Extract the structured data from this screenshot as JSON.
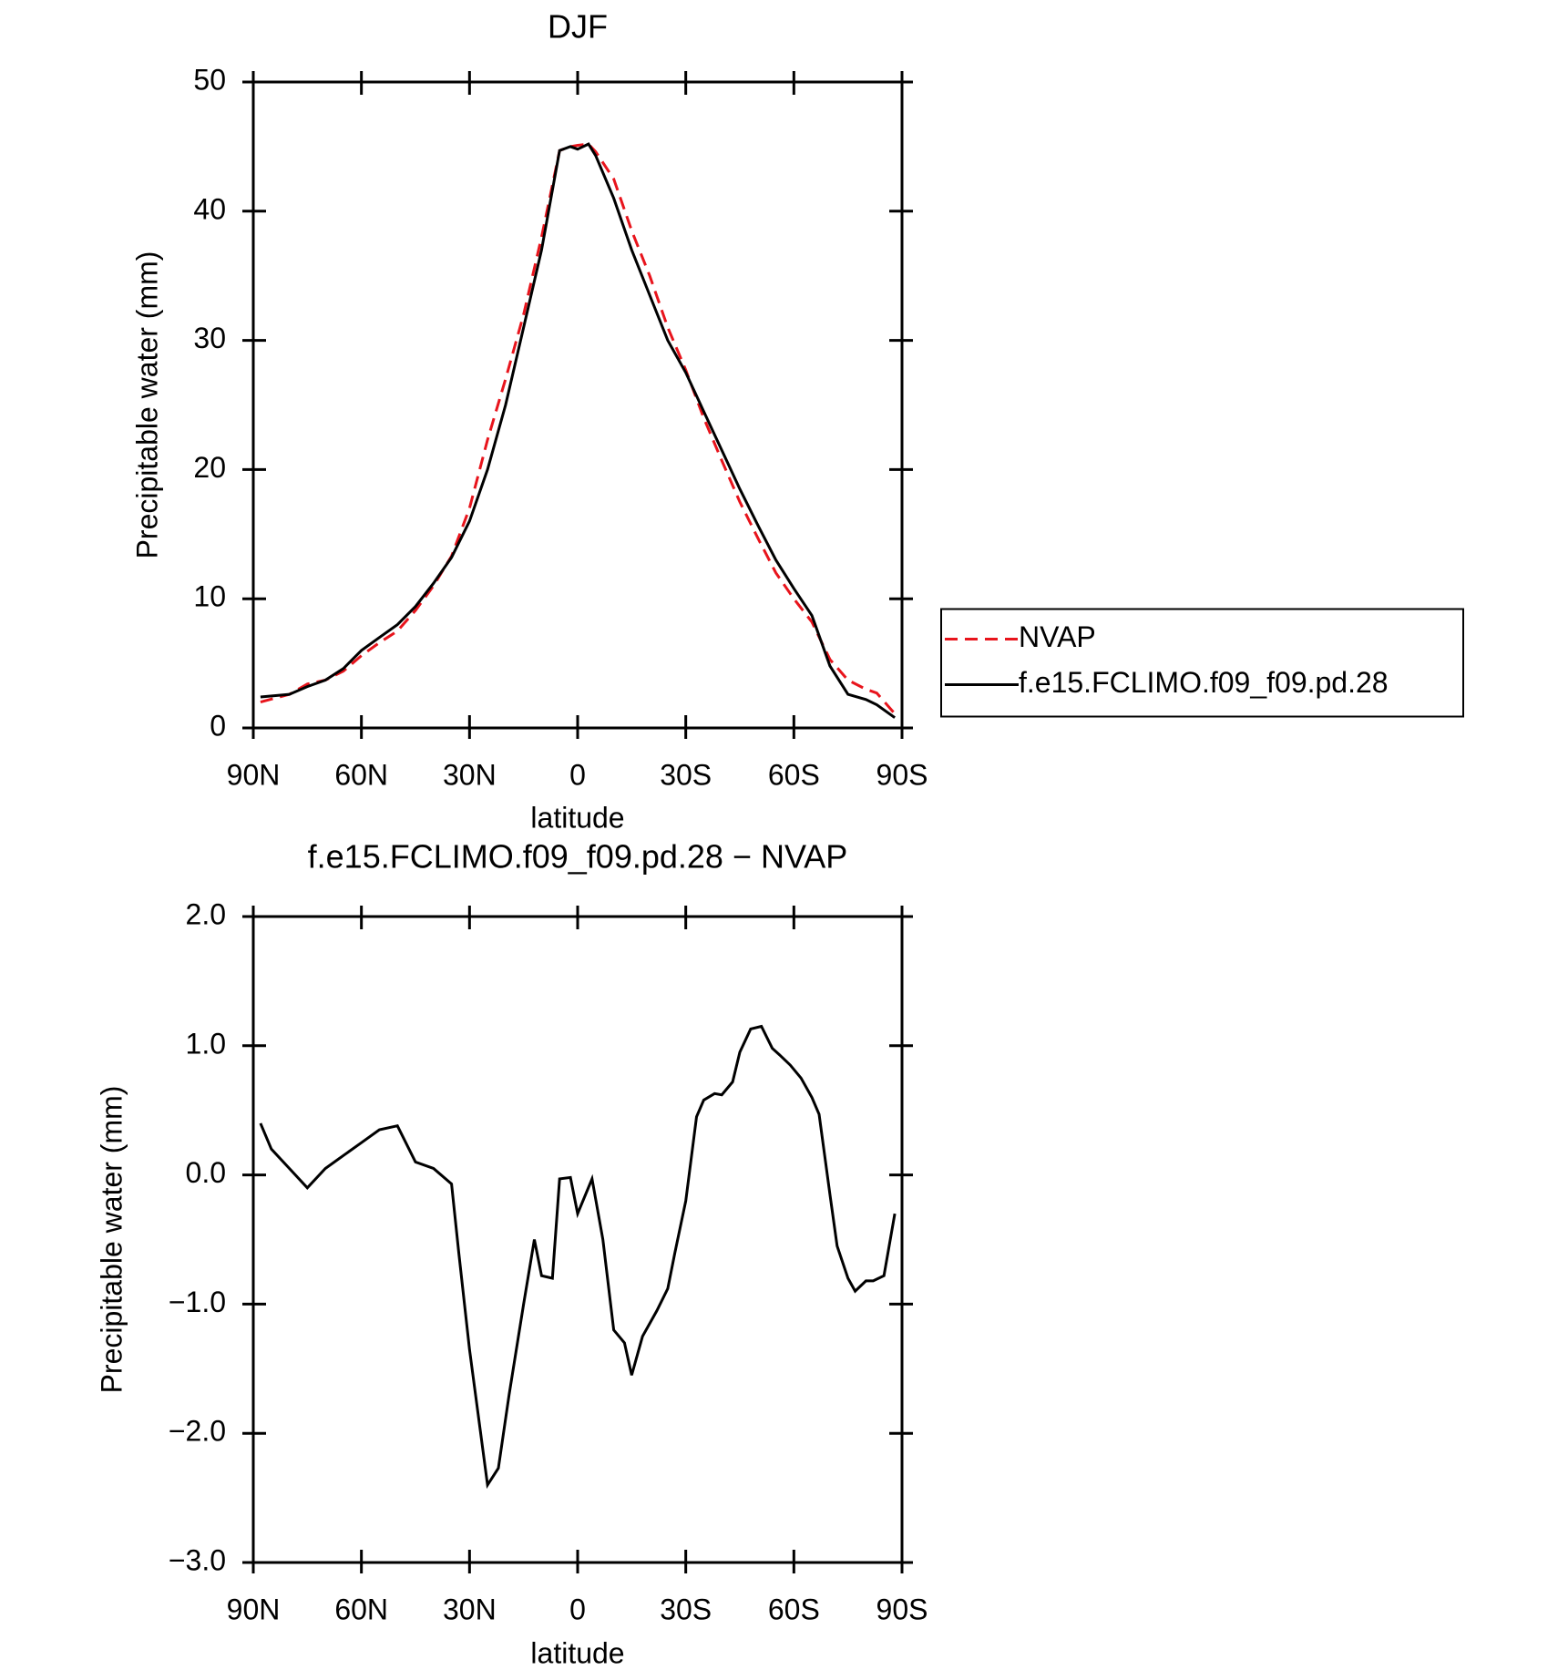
{
  "chart_data": [
    {
      "type": "line",
      "title": "DJF",
      "xlabel": "latitude",
      "ylabel": "Precipitable water (mm)",
      "x": [
        88,
        80,
        75,
        70,
        65,
        60,
        55,
        50,
        45,
        40,
        35,
        30,
        25,
        20,
        15,
        10,
        5,
        2,
        0,
        -3,
        -5,
        -10,
        -15,
        -20,
        -25,
        -30,
        -35,
        -40,
        -45,
        -50,
        -55,
        -60,
        -65,
        -70,
        -75,
        -80,
        -83,
        -88
      ],
      "series": [
        {
          "name": "NVAP",
          "color": "#e8141c",
          "style": "dashed",
          "values": [
            2.0,
            2.6,
            3.4,
            3.7,
            4.4,
            5.6,
            6.6,
            7.5,
            9.1,
            11.0,
            13.3,
            17.0,
            22.3,
            27.0,
            32.0,
            38.0,
            44.7,
            45.0,
            45.1,
            45.2,
            44.6,
            42.5,
            38.5,
            35.0,
            31.0,
            27.7,
            24.0,
            20.7,
            17.5,
            14.7,
            12.0,
            10.0,
            8.2,
            5.3,
            3.7,
            3.0,
            2.7,
            1.1
          ]
        },
        {
          "name": "f.e15.FCLIMO.f09_f09.pd.28",
          "color": "#000000",
          "style": "solid",
          "values": [
            2.4,
            2.6,
            3.2,
            3.7,
            4.6,
            6.0,
            7.0,
            8.0,
            9.4,
            11.2,
            13.2,
            16.0,
            20.0,
            25.0,
            31.0,
            37.0,
            44.7,
            45.0,
            44.8,
            45.2,
            44.3,
            41.0,
            37.0,
            33.5,
            30.0,
            27.5,
            24.5,
            21.5,
            18.5,
            15.7,
            13.0,
            10.8,
            8.7,
            4.8,
            2.6,
            2.2,
            1.8,
            0.8
          ]
        }
      ],
      "xlim": [
        90,
        -90
      ],
      "xticks": [
        {
          "value": 90,
          "label": "90N"
        },
        {
          "value": 60,
          "label": "60N"
        },
        {
          "value": 30,
          "label": "30N"
        },
        0,
        {
          "value": -30,
          "label": "30S"
        },
        {
          "value": -60,
          "label": "60S"
        },
        {
          "value": -90,
          "label": "90S"
        }
      ],
      "ylim": [
        0,
        50
      ],
      "yticks": [
        0,
        10,
        20,
        30,
        40,
        50
      ],
      "legend": "right"
    },
    {
      "type": "line",
      "title": "f.e15.FCLIMO.f09_f09.pd.28 − NVAP",
      "xlabel": "latitude",
      "ylabel": "Precipitable water (mm)",
      "x": [
        88,
        85,
        80,
        75,
        70,
        65,
        60,
        55,
        50,
        45,
        40,
        35,
        33,
        30,
        25,
        22,
        19,
        15,
        12,
        10,
        7,
        5,
        2,
        0,
        -4,
        -7,
        -10,
        -13,
        -15,
        -18,
        -22,
        -25,
        -27,
        -30,
        -33,
        -35,
        -38,
        -40,
        -43,
        -45,
        -48,
        -51,
        -54,
        -56,
        -59,
        -62,
        -65,
        -67,
        -70,
        -72,
        -75,
        -77,
        -80,
        -82,
        -85,
        -88
      ],
      "series": [
        {
          "color": "#000000",
          "style": "solid",
          "values": [
            0.4,
            0.2,
            0.05,
            -0.1,
            0.05,
            0.15,
            0.25,
            0.35,
            0.38,
            0.1,
            0.05,
            -0.07,
            -0.6,
            -1.35,
            -2.4,
            -2.27,
            -1.7,
            -1.0,
            -0.5,
            -0.78,
            -0.8,
            -0.03,
            -0.02,
            -0.3,
            -0.03,
            -0.5,
            -1.2,
            -1.3,
            -1.55,
            -1.25,
            -1.05,
            -0.88,
            -0.6,
            -0.2,
            0.45,
            0.58,
            0.63,
            0.62,
            0.72,
            0.95,
            1.13,
            1.15,
            0.98,
            0.93,
            0.85,
            0.75,
            0.6,
            0.47,
            -0.15,
            -0.55,
            -0.8,
            -0.9,
            -0.82,
            -0.82,
            -0.78,
            -0.3
          ]
        }
      ],
      "xlim": [
        90,
        -90
      ],
      "xticks": [
        {
          "value": 90,
          "label": "90N"
        },
        {
          "value": 60,
          "label": "60N"
        },
        {
          "value": 30,
          "label": "30N"
        },
        0,
        {
          "value": -30,
          "label": "30S"
        },
        {
          "value": -60,
          "label": "60S"
        },
        {
          "value": -90,
          "label": "90S"
        }
      ],
      "ylim": [
        -3,
        2
      ],
      "yticks": [
        {
          "value": -3,
          "label": "−3.0"
        },
        {
          "value": -2,
          "label": "−2.0"
        },
        {
          "value": -1,
          "label": "−1.0"
        },
        {
          "value": 0,
          "label": "0.0"
        },
        {
          "value": 1,
          "label": "1.0"
        },
        {
          "value": 2,
          "label": "2.0"
        }
      ]
    }
  ]
}
